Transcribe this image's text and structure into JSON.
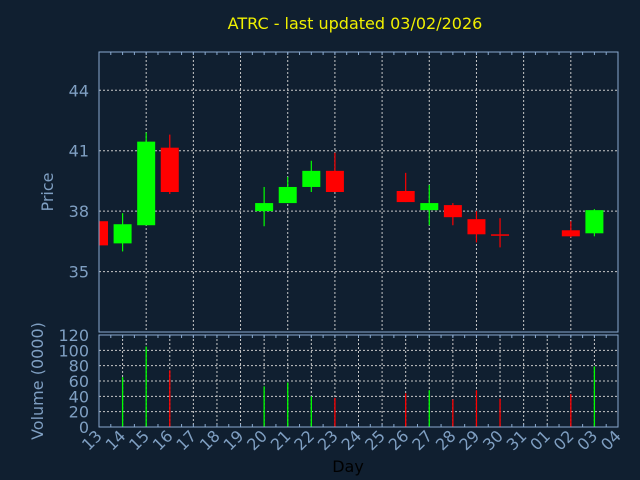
{
  "chart_data": [
    {
      "type": "candlestick",
      "title": "ATRC - last updated 03/02/2026",
      "ylabel": "Price",
      "ylim": [
        32,
        45.9
      ],
      "yticks": [
        35,
        38,
        41,
        44
      ],
      "grid": true,
      "categories": [
        "13",
        "14",
        "15",
        "16",
        "17",
        "18",
        "19",
        "20",
        "21",
        "22",
        "23",
        "24",
        "25",
        "26",
        "27",
        "28",
        "29",
        "30",
        "31",
        "01",
        "02",
        "03",
        "04"
      ],
      "candles": [
        {
          "day": "13",
          "open": 37.5,
          "high": 37.5,
          "low": 36.3,
          "close": 36.3
        },
        {
          "day": "14",
          "open": 36.4,
          "high": 37.9,
          "low": 36.0,
          "close": 37.35
        },
        {
          "day": "15",
          "open": 37.3,
          "high": 41.9,
          "low": 37.3,
          "close": 41.45
        },
        {
          "day": "16",
          "open": 41.15,
          "high": 41.8,
          "low": 38.85,
          "close": 38.95
        },
        {
          "day": "20",
          "open": 38.0,
          "high": 39.2,
          "low": 37.25,
          "close": 38.4
        },
        {
          "day": "21",
          "open": 38.4,
          "high": 39.7,
          "low": 38.4,
          "close": 39.2
        },
        {
          "day": "22",
          "open": 39.2,
          "high": 40.5,
          "low": 38.95,
          "close": 40.0
        },
        {
          "day": "23",
          "open": 40.0,
          "high": 40.9,
          "low": 38.95,
          "close": 38.95
        },
        {
          "day": "26",
          "open": 39.0,
          "high": 39.9,
          "low": 38.45,
          "close": 38.45
        },
        {
          "day": "27",
          "open": 38.05,
          "high": 39.3,
          "low": 37.3,
          "close": 38.4
        },
        {
          "day": "28",
          "open": 38.3,
          "high": 38.4,
          "low": 37.3,
          "close": 37.7
        },
        {
          "day": "29",
          "open": 37.6,
          "high": 38.0,
          "low": 36.45,
          "close": 36.85
        },
        {
          "day": "30",
          "open": 36.85,
          "high": 37.65,
          "low": 36.2,
          "close": 36.8
        },
        {
          "day": "02",
          "open": 37.05,
          "high": 37.5,
          "low": 36.7,
          "close": 36.75
        },
        {
          "day": "03",
          "open": 36.9,
          "high": 38.1,
          "low": 36.75,
          "close": 38.05
        }
      ]
    },
    {
      "type": "bar",
      "ylabel": "Volume (0000)",
      "xlabel": "Day",
      "ylim": [
        0,
        120
      ],
      "yticks": [
        0,
        20,
        40,
        60,
        80,
        100,
        120
      ],
      "grid": true,
      "categories": [
        "13",
        "14",
        "15",
        "16",
        "17",
        "18",
        "19",
        "20",
        "21",
        "22",
        "23",
        "24",
        "25",
        "26",
        "27",
        "28",
        "29",
        "30",
        "31",
        "01",
        "02",
        "03",
        "04"
      ],
      "bars": [
        {
          "day": "14",
          "value": 65,
          "direction": "up"
        },
        {
          "day": "15",
          "value": 105,
          "direction": "up"
        },
        {
          "day": "16",
          "value": 74,
          "direction": "down"
        },
        {
          "day": "20",
          "value": 53,
          "direction": "up"
        },
        {
          "day": "21",
          "value": 58,
          "direction": "up"
        },
        {
          "day": "22",
          "value": 40,
          "direction": "up"
        },
        {
          "day": "23",
          "value": 38,
          "direction": "down"
        },
        {
          "day": "26",
          "value": 44,
          "direction": "down"
        },
        {
          "day": "27",
          "value": 48,
          "direction": "up"
        },
        {
          "day": "28",
          "value": 36,
          "direction": "down"
        },
        {
          "day": "29",
          "value": 48,
          "direction": "down"
        },
        {
          "day": "30",
          "value": 37,
          "direction": "down"
        },
        {
          "day": "02",
          "value": 43,
          "direction": "down"
        },
        {
          "day": "03",
          "value": 79,
          "direction": "up"
        }
      ]
    }
  ],
  "colors": {
    "background": "#101f30",
    "title": "#f0f000",
    "axis": "#8aaad0",
    "label": "#7f9fc2",
    "grid": "#c8c8c8",
    "up": "#00ff00",
    "down": "#ff0000"
  }
}
